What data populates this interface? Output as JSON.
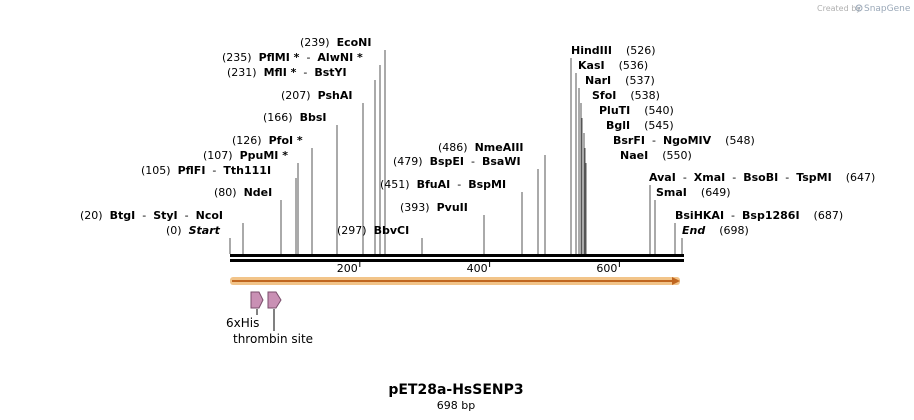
{
  "header": {
    "credit_text": "Created by",
    "brand_name": "SnapGene",
    "brand_icon": "snapgene-logo-icon"
  },
  "sequence": {
    "name": "pET28a-HsSENP3",
    "size_label": "698 bp",
    "length_bp": 698,
    "ruler_ticks": [
      {
        "bp": 200,
        "label": "200"
      },
      {
        "bp": 400,
        "label": "400"
      },
      {
        "bp": 600,
        "label": "600"
      }
    ]
  },
  "site_labels": [
    {
      "pos": "(239)",
      "items": [
        {
          "text": "EcoNI"
        }
      ],
      "bp": 239
    },
    {
      "pos": "(235)",
      "items": [
        {
          "text": "PflMI *"
        },
        {
          "sep": "-"
        },
        {
          "text": "AlwNI *"
        }
      ],
      "bp": 235
    },
    {
      "pos": "(231)",
      "items": [
        {
          "text": "MflI *"
        },
        {
          "sep": "-"
        },
        {
          "text": "BstYI"
        }
      ],
      "bp": 231
    },
    {
      "pos": "(207)",
      "items": [
        {
          "text": "PshAI"
        }
      ],
      "bp": 207
    },
    {
      "pos": "(166)",
      "items": [
        {
          "text": "BbsI"
        }
      ],
      "bp": 166
    },
    {
      "pos": "(126)",
      "items": [
        {
          "text": "PfoI *"
        }
      ],
      "bp": 126
    },
    {
      "pos": "(107)",
      "items": [
        {
          "text": "PpuMI *"
        }
      ],
      "bp": 107
    },
    {
      "pos": "(105)",
      "items": [
        {
          "text": "PflFI"
        },
        {
          "sep": "-"
        },
        {
          "text": "Tth111I"
        }
      ],
      "bp": 105
    },
    {
      "pos": "(80)",
      "items": [
        {
          "text": "NdeI"
        }
      ],
      "bp": 80
    },
    {
      "pos": "(20)",
      "items": [
        {
          "text": "BtgI"
        },
        {
          "sep": "-"
        },
        {
          "text": "StyI"
        },
        {
          "sep": "-"
        },
        {
          "text": "NcoI"
        }
      ],
      "bp": 20
    },
    {
      "pos": "(0)",
      "items": [
        {
          "text": "Start",
          "italic": true
        }
      ],
      "bp": 0
    },
    {
      "pos": "(297)",
      "items": [
        {
          "text": "BbvCI"
        }
      ],
      "bp": 297,
      "pos_first": true
    },
    {
      "pos": "(393)",
      "items": [
        {
          "text": "PvuII"
        }
      ],
      "bp": 393
    },
    {
      "pos": "(451)",
      "items": [
        {
          "text": "BfuAI"
        },
        {
          "sep": "-"
        },
        {
          "text": "BspMI"
        }
      ],
      "bp": 451
    },
    {
      "pos": "(479)",
      "items": [
        {
          "text": "BspEI"
        },
        {
          "sep": "-"
        },
        {
          "text": "BsaWI"
        }
      ],
      "bp": 479
    },
    {
      "pos": "(486)",
      "items": [
        {
          "text": "NmeAIII"
        }
      ],
      "bp": 486
    },
    {
      "pos": "(526)",
      "items": [
        {
          "text": "HindIII"
        }
      ],
      "bp": 526,
      "pos_after": true
    },
    {
      "pos": "(536)",
      "items": [
        {
          "text": "KasI"
        }
      ],
      "bp": 536,
      "pos_after": true
    },
    {
      "pos": "(537)",
      "items": [
        {
          "text": "NarI"
        }
      ],
      "bp": 537,
      "pos_after": true
    },
    {
      "pos": "(538)",
      "items": [
        {
          "text": "SfoI"
        }
      ],
      "bp": 538,
      "pos_after": true
    },
    {
      "pos": "(540)",
      "items": [
        {
          "text": "PluTI"
        }
      ],
      "bp": 540,
      "pos_after": true
    },
    {
      "pos": "(545)",
      "items": [
        {
          "text": "BglI"
        }
      ],
      "bp": 545,
      "pos_after": true
    },
    {
      "pos": "(548)",
      "items": [
        {
          "text": "BsrFI"
        },
        {
          "sep": "-"
        },
        {
          "text": "NgoMIV"
        }
      ],
      "bp": 548,
      "pos_after": true
    },
    {
      "pos": "(550)",
      "items": [
        {
          "text": "NaeI"
        }
      ],
      "bp": 550,
      "pos_after": true
    },
    {
      "pos": "(647)",
      "items": [
        {
          "text": "AvaI"
        },
        {
          "sep": "-"
        },
        {
          "text": "XmaI"
        },
        {
          "sep": "-"
        },
        {
          "text": "BsoBI"
        },
        {
          "sep": "-"
        },
        {
          "text": "TspMI"
        }
      ],
      "bp": 647,
      "pos_after": true
    },
    {
      "pos": "(649)",
      "items": [
        {
          "text": "SmaI"
        }
      ],
      "bp": 649,
      "pos_after": true
    },
    {
      "pos": "(687)",
      "items": [
        {
          "text": "BsiHKAI"
        },
        {
          "sep": "-"
        },
        {
          "text": "Bsp1286I"
        }
      ],
      "bp": 687,
      "pos_after": true
    },
    {
      "pos": "(698)",
      "items": [
        {
          "text": "End",
          "italic": true
        }
      ],
      "bp": 698,
      "pos_after": true
    }
  ],
  "features": [
    {
      "name": "6xHis",
      "type": "tag"
    },
    {
      "name": "thrombin site",
      "type": "site"
    }
  ],
  "colors": {
    "orf_fill": "#f2c489",
    "orf_arrow": "#c0661f",
    "feature_fill": "#c990b4",
    "feature_stroke": "#7a4e6b",
    "backbone": "#000000",
    "site_line": "#444444"
  }
}
